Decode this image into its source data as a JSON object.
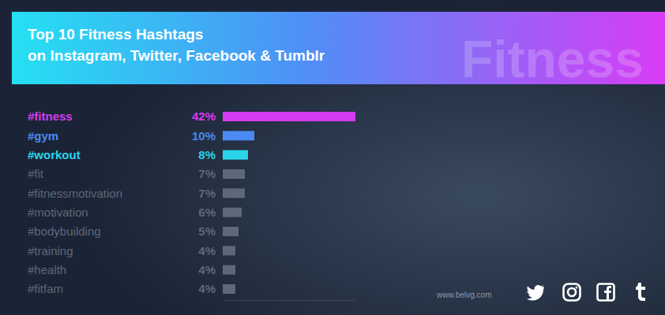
{
  "chart_data": {
    "type": "bar",
    "orientation": "horizontal",
    "title": "Top 10 Fitness Hashtags",
    "subtitle": "on Instagram, Twitter, Facebook & Tumblr",
    "annotations": [
      "Fitness",
      "www.belvg.com"
    ],
    "categories": [
      "#fitness",
      "#gym",
      "#workout",
      "#fit",
      "#fitnessmotivation",
      "#motivation",
      "#bodybuilding",
      "#training",
      "#health",
      "#fitfam"
    ],
    "values": [
      42,
      10,
      8,
      7,
      7,
      6,
      5,
      4,
      4,
      4
    ],
    "value_labels": [
      "42%",
      "10%",
      "8%",
      "7%",
      "7%",
      "6%",
      "5%",
      "4%",
      "4%",
      "4%"
    ],
    "data_labels": true,
    "colors": [
      "#d43cf2",
      "#4a8af2",
      "#2ad4ea",
      "#5d6879",
      "#5d6879",
      "#5d6879",
      "#5d6879",
      "#5d6879",
      "#5d6879",
      "#5d6879"
    ],
    "xlim": [
      0,
      42
    ],
    "xticks": [],
    "tick_labels": "y",
    "grid": false
  }
}
